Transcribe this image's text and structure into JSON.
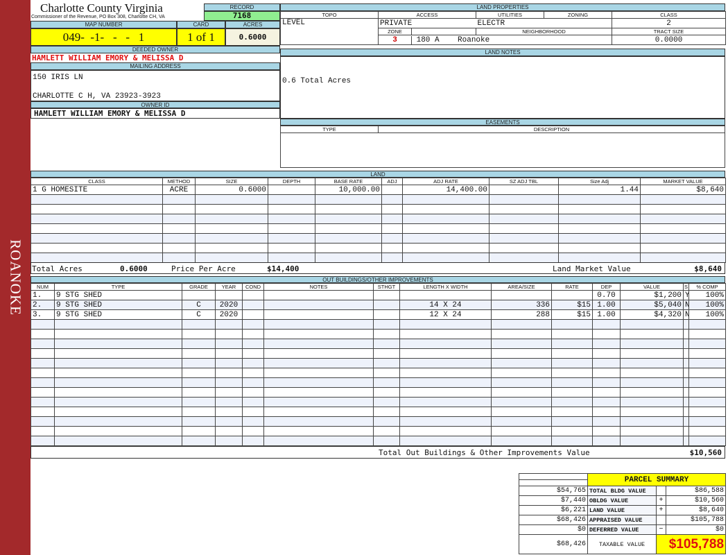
{
  "sidebar": {
    "label": "ROANOKE",
    "color": "#a3292b"
  },
  "header": {
    "title": "Charlotte County Virginia",
    "subtitle": "Commissioner of the Revenue, PO Box 308, Charlotte CH, VA",
    "record_label": "RECORD",
    "record": "7168"
  },
  "map": {
    "map_label": "MAP NUMBER",
    "map_number": "049-  -1-   -   -   1",
    "card_label": "CARD",
    "card": "1 of 1",
    "acres_label": "ACRES",
    "acres": "0.6000"
  },
  "owner": {
    "deeded_label": "DEEDED OWNER",
    "deeded": "HAMLETT WILLIAM EMORY & MELISSA D",
    "mailing_label": "MAILING ADDRESS",
    "address1": "150 IRIS LN",
    "address2": "CHARLOTTE C H, VA 23923-3923",
    "owner_id_label": "OWNER ID",
    "owner_id": "HAMLETT WILLIAM EMORY & MELISSA D"
  },
  "land_properties": {
    "label": "LAND PROPERTIES",
    "topo_label": "TOPO",
    "access_label": "ACCESS",
    "utilities_label": "UTILITIES",
    "zoning_label": "ZONING",
    "class_label": "CLASS",
    "topo": "LEVEL",
    "access": "PRIVATE",
    "utilities": "ELECTR",
    "zoning": "",
    "class": "2",
    "zone_label": "ZONE",
    "neighborhood_label": "NEIGHBORHOOD",
    "tract_label": "TRACT SIZE",
    "zone": "3",
    "neighborhood_code": "180 A",
    "neighborhood": "Roanoke",
    "tract_size": "0.0000"
  },
  "land_notes": {
    "label": "LAND NOTES",
    "text": "0.6 Total Acres"
  },
  "easements": {
    "label": "EASEMENTS",
    "type_label": "TYPE",
    "description_label": "DESCRIPTION"
  },
  "land": {
    "label": "LAND",
    "columns": [
      "CLASS",
      "METHOD",
      "SIZE",
      "DEPTH",
      "BASE RATE",
      "ADJ",
      "ADJ RATE",
      "SZ ADJ TBL",
      "Size Adj",
      "MARKET VALUE"
    ],
    "rows": [
      [
        "1 G HOMESITE",
        "ACRE",
        "0.6000",
        "",
        "10,000.00",
        "",
        "14,400.00",
        "",
        "1.44",
        "$8,640"
      ]
    ],
    "total_acres_label": "Total Acres",
    "total_acres": "0.6000",
    "ppa_label": "Price Per Acre",
    "ppa": "$14,400",
    "market_label": "Land Market Value",
    "market": "$8,640"
  },
  "outbuildings": {
    "label": "OUT BUILDINGS/OTHER IMPROVEMENTS",
    "columns": [
      "NUM",
      "TYPE",
      "GRADE",
      "YEAR",
      "COND",
      "NOTES",
      "STHGT",
      "LENGTH X WIDTH",
      "AREA/SIZE",
      "RATE",
      "DEP",
      "VALUE",
      "S",
      "% COMP"
    ],
    "rows": [
      [
        "1.",
        "9 STG SHED",
        "",
        "",
        "",
        "",
        "",
        "",
        "",
        "",
        "0.70",
        "$1,200",
        "Y",
        "100%"
      ],
      [
        "2.",
        "9 STG SHED",
        "C",
        "2020",
        "",
        "",
        "",
        "14 X 24",
        "336",
        "$15",
        "1.00",
        "$5,040",
        "N",
        "100%"
      ],
      [
        "3.",
        "9 STG SHED",
        "C",
        "2020",
        "",
        "",
        "",
        "12 X 24",
        "288",
        "$15",
        "1.00",
        "$4,320",
        "N",
        "100%"
      ]
    ],
    "total_label": "Total Out Buildings & Other Improvements Value",
    "total": "$10,560"
  },
  "summary": {
    "title": "PARCEL SUMMARY",
    "rows": [
      {
        "prior": "$54,765",
        "label": "TOTAL BLDG VALUE",
        "op": "",
        "value": "$86,588"
      },
      {
        "prior": "$7,440",
        "label": "OBLDG VALUE",
        "op": "+",
        "value": "$10,560"
      },
      {
        "prior": "$6,221",
        "label": "LAND VALUE",
        "op": "+",
        "value": "$8,640"
      },
      {
        "prior": "$68,426",
        "label": "APPRAISED VALUE",
        "op": "",
        "value": "$105,788"
      },
      {
        "prior": "$0",
        "label": "DEFERRED VALUE",
        "op": "−",
        "value": "$0"
      }
    ],
    "taxable_prior": "$68,426",
    "taxable_label": "TAXABLE VALUE",
    "taxable": "$105,788"
  },
  "colors": {
    "header_blue": "#a9d6e5",
    "yellow": "#ffff00",
    "green": "#90ee90",
    "red": "#e01010"
  }
}
